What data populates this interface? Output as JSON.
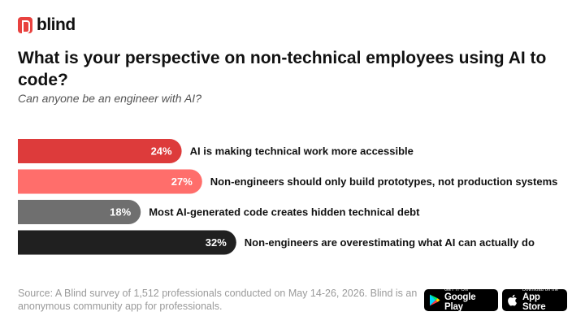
{
  "brand": {
    "name": "blind",
    "color": "#e8423f"
  },
  "title": "What is your perspective on non-technical employees using AI to code?",
  "subtitle": "Can anyone be an engineer with AI?",
  "chart_data": {
    "type": "bar",
    "orientation": "horizontal",
    "categories": [
      "AI is making technical work more accessible",
      "Non-engineers should only build prototypes, not production systems",
      "Most AI-generated code creates hidden technical debt",
      "Non-engineers are overestimating what AI can actually do"
    ],
    "values": [
      24,
      27,
      18,
      32
    ],
    "value_labels": [
      "24%",
      "27%",
      "18%",
      "32%"
    ],
    "colors": [
      "#dd3b3b",
      "#ff6e6b",
      "#6f6f6f",
      "#202020"
    ],
    "unit": "%",
    "grid": false,
    "legend": "none"
  },
  "footer": {
    "source": "Source: A Blind survey of 1,512 professionals conducted on May 14-26, 2026. Blind is an anonymous community app for professionals."
  },
  "stores": {
    "google_play": {
      "small": "GET IT ON",
      "big": "Google Play",
      "icon": "google-play-icon"
    },
    "app_store": {
      "small": "Download on the",
      "big": "App Store",
      "icon": "apple-icon"
    }
  }
}
